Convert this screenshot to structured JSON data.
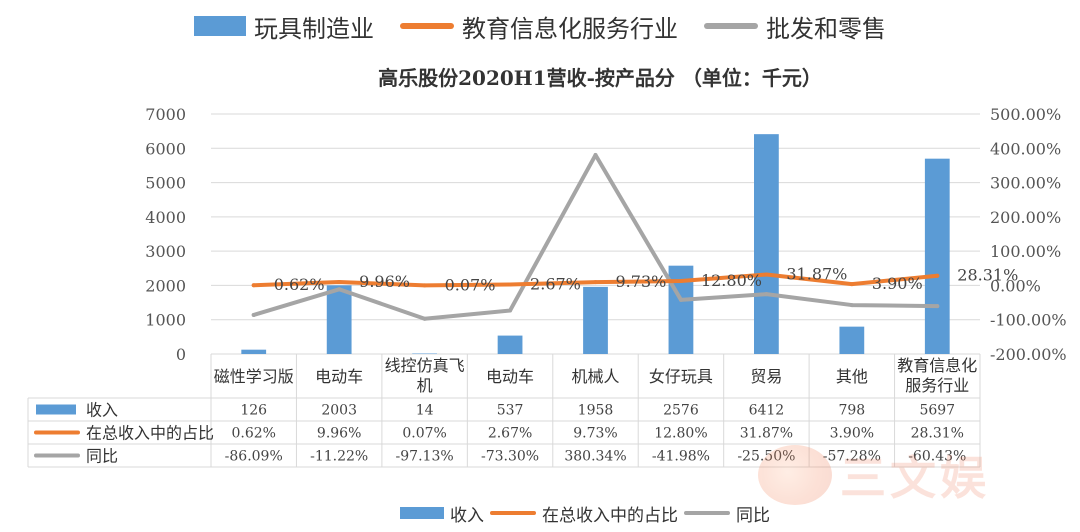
{
  "top_legend": [
    {
      "label": "玩具制造业",
      "kind": "bar",
      "color": "#5b9bd5"
    },
    {
      "label": "教育信息化服务行业",
      "kind": "line",
      "color": "#ed7d31"
    },
    {
      "label": "批发和零售",
      "kind": "line",
      "color": "#a5a5a5"
    }
  ],
  "bottom_legend": [
    {
      "label": "收入",
      "kind": "bar",
      "color": "#5b9bd5"
    },
    {
      "label": "在总收入中的占比",
      "kind": "line",
      "color": "#ed7d31"
    },
    {
      "label": "同比",
      "kind": "line",
      "color": "#a5a5a5"
    }
  ],
  "watermark": "三文娱",
  "chart_data": {
    "type": "bar",
    "title": "高乐股份2020H1营收-按产品分 （单位：千元）",
    "categories": [
      "磁性学习版",
      "电动车",
      "线控仿真飞机",
      "电动车",
      "机械人",
      "女仔玩具",
      "贸易",
      "其他",
      "教育信息化服务行业"
    ],
    "category_lines": [
      [
        "磁性学习版"
      ],
      [
        "电动车"
      ],
      [
        "线控仿真飞",
        "机"
      ],
      [
        "电动车"
      ],
      [
        "机械人"
      ],
      [
        "女仔玩具"
      ],
      [
        "贸易"
      ],
      [
        "其他"
      ],
      [
        "教育信息化",
        "服务行业"
      ]
    ],
    "series": [
      {
        "name": "收入",
        "type": "bar",
        "axis": "left",
        "color": "#5b9bd5",
        "values": [
          126,
          2003,
          14,
          537,
          1958,
          2576,
          6412,
          798,
          5697
        ],
        "table_labels": [
          "126",
          "2003",
          "14",
          "537",
          "1958",
          "2576",
          "6412",
          "798",
          "5697"
        ]
      },
      {
        "name": "在总收入中的占比",
        "type": "line",
        "axis": "right",
        "color": "#ed7d31",
        "values": [
          0.62,
          9.96,
          0.07,
          2.67,
          9.73,
          12.8,
          31.87,
          3.9,
          28.31
        ],
        "table_labels": [
          "0.62%",
          "9.96%",
          "0.07%",
          "2.67%",
          "9.73%",
          "12.80%",
          "31.87%",
          "3.90%",
          "28.31%"
        ],
        "point_labels": [
          "0.62%",
          "9.96%",
          "0.07%",
          "2.67%",
          "9.73%",
          "12.80%",
          "31.87%",
          "3.90%",
          "28.31%"
        ]
      },
      {
        "name": "同比",
        "type": "line",
        "axis": "right",
        "color": "#a5a5a5",
        "values": [
          -86.09,
          -11.22,
          -97.13,
          -73.3,
          380.34,
          -41.98,
          -25.5,
          -57.28,
          -60.43
        ],
        "table_labels": [
          "-86.09%",
          "-11.22%",
          "-97.13%",
          "-73.30%",
          "380.34%",
          "-41.98%",
          "-25.50%",
          "-57.28%",
          "-60.43%"
        ]
      }
    ],
    "y_left": {
      "min": 0,
      "max": 7000,
      "ticks": [
        "0",
        "1000",
        "2000",
        "3000",
        "4000",
        "5000",
        "6000",
        "7000"
      ]
    },
    "y_right": {
      "min": -200,
      "max": 500,
      "ticks": [
        "-200.00%",
        "-100.00%",
        "0.00%",
        "100.00%",
        "200.00%",
        "300.00%",
        "400.00%",
        "500.00%"
      ]
    },
    "grid": true,
    "data_table": true
  }
}
